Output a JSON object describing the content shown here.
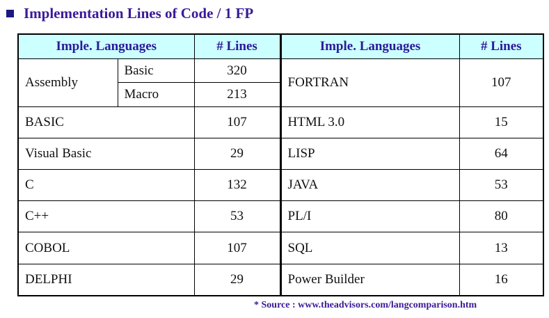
{
  "title": "Implementation Lines of Code / 1 FP",
  "colors": {
    "title": "#3a1a99",
    "header_bg": "#ccffff",
    "bullet": "#1a1a80"
  },
  "table": {
    "headers": {
      "language": "Imple. Languages",
      "lines": "# Lines"
    },
    "assembly": {
      "label": "Assembly",
      "variants": [
        {
          "name": "Basic",
          "lines": "320"
        },
        {
          "name": "Macro",
          "lines": "213"
        }
      ]
    },
    "left_rows": [
      {
        "language": "BASIC",
        "lines": "107"
      },
      {
        "language": "Visual Basic",
        "lines": "29"
      },
      {
        "language": "C",
        "lines": "132"
      },
      {
        "language": "C++",
        "lines": "53"
      },
      {
        "language": "COBOL",
        "lines": "107"
      },
      {
        "language": "DELPHI",
        "lines": "29"
      }
    ],
    "right_rows": [
      {
        "language": "FORTRAN",
        "lines": "107"
      },
      {
        "language": "HTML 3.0",
        "lines": "15"
      },
      {
        "language": "LISP",
        "lines": "64"
      },
      {
        "language": "JAVA",
        "lines": "53"
      },
      {
        "language": "PL/I",
        "lines": "80"
      },
      {
        "language": "SQL",
        "lines": "13"
      },
      {
        "language": "Power Builder",
        "lines": "16"
      }
    ]
  },
  "source": "* Source : www.theadvisors.com/langcomparison.htm"
}
